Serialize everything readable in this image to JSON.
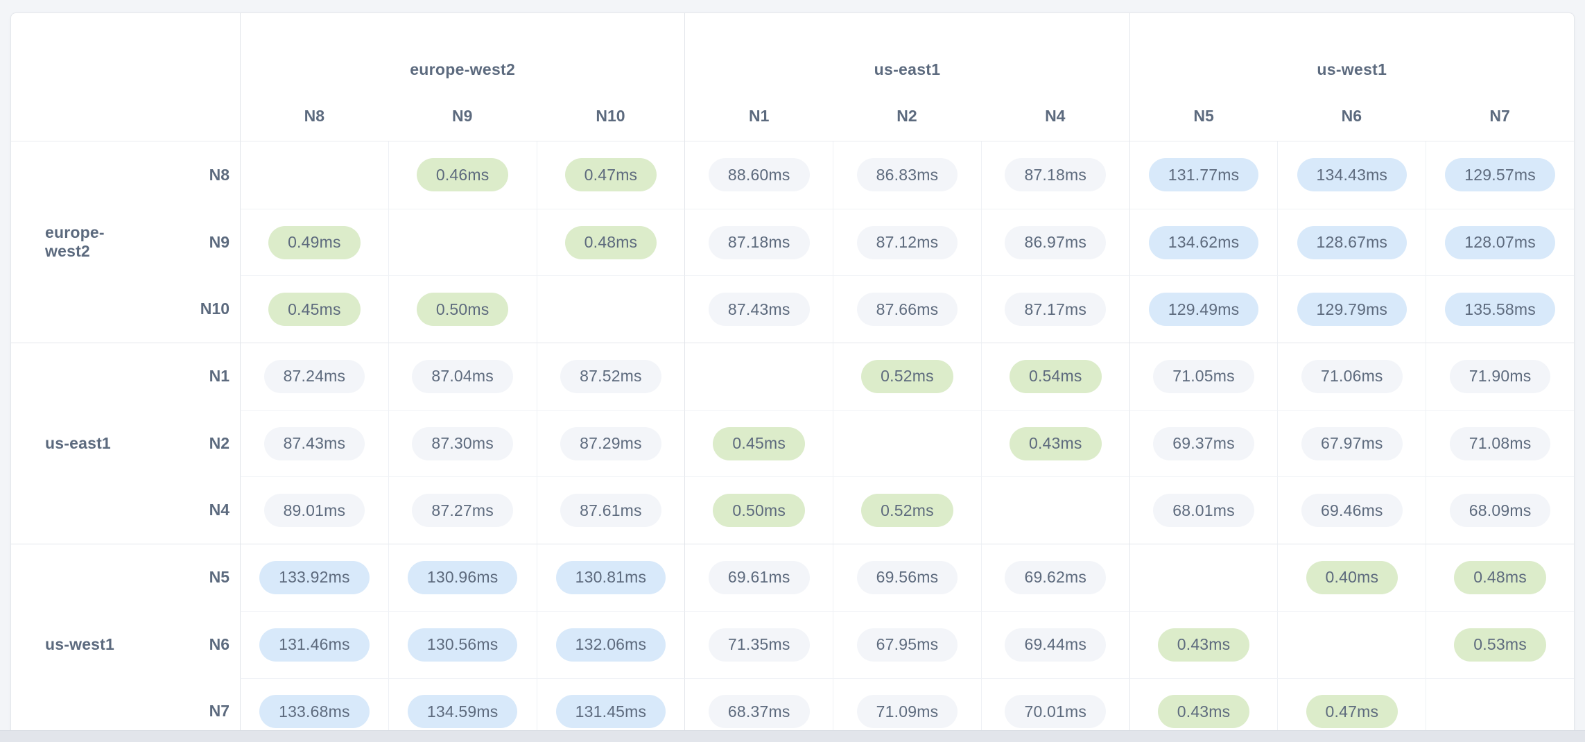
{
  "page": {
    "background": "#f3f5f8"
  },
  "chart_data": {
    "type": "heatmap",
    "unit": "ms",
    "legend": "none",
    "groups": [
      {
        "name": "europe-west2",
        "nodes": [
          "N8",
          "N9",
          "N10"
        ]
      },
      {
        "name": "us-east1",
        "nodes": [
          "N1",
          "N2",
          "N4"
        ]
      },
      {
        "name": "us-west1",
        "nodes": [
          "N5",
          "N6",
          "N7"
        ]
      }
    ],
    "columns": [
      "N8",
      "N9",
      "N10",
      "N1",
      "N2",
      "N4",
      "N5",
      "N6",
      "N7"
    ],
    "rows": [
      {
        "region": "europe-west2",
        "node": "N8",
        "values": [
          null,
          "0.46ms",
          "0.47ms",
          "88.60ms",
          "86.83ms",
          "87.18ms",
          "131.77ms",
          "134.43ms",
          "129.57ms"
        ]
      },
      {
        "region": "europe-west2",
        "node": "N9",
        "values": [
          "0.49ms",
          null,
          "0.48ms",
          "87.18ms",
          "87.12ms",
          "86.97ms",
          "134.62ms",
          "128.67ms",
          "128.07ms"
        ]
      },
      {
        "region": "europe-west2",
        "node": "N10",
        "values": [
          "0.45ms",
          "0.50ms",
          null,
          "87.43ms",
          "87.66ms",
          "87.17ms",
          "129.49ms",
          "129.79ms",
          "135.58ms"
        ]
      },
      {
        "region": "us-east1",
        "node": "N1",
        "values": [
          "87.24ms",
          "87.04ms",
          "87.52ms",
          null,
          "0.52ms",
          "0.54ms",
          "71.05ms",
          "71.06ms",
          "71.90ms"
        ]
      },
      {
        "region": "us-east1",
        "node": "N2",
        "values": [
          "87.43ms",
          "87.30ms",
          "87.29ms",
          "0.45ms",
          null,
          "0.43ms",
          "69.37ms",
          "67.97ms",
          "71.08ms"
        ]
      },
      {
        "region": "us-east1",
        "node": "N4",
        "values": [
          "89.01ms",
          "87.27ms",
          "87.61ms",
          "0.50ms",
          "0.52ms",
          null,
          "68.01ms",
          "69.46ms",
          "68.09ms"
        ]
      },
      {
        "region": "us-west1",
        "node": "N5",
        "values": [
          "133.92ms",
          "130.96ms",
          "130.81ms",
          "69.61ms",
          "69.56ms",
          "69.62ms",
          null,
          "0.40ms",
          "0.48ms"
        ]
      },
      {
        "region": "us-west1",
        "node": "N6",
        "values": [
          "131.46ms",
          "130.56ms",
          "132.06ms",
          "71.35ms",
          "67.95ms",
          "69.44ms",
          "0.43ms",
          null,
          "0.53ms"
        ]
      },
      {
        "region": "us-west1",
        "node": "N7",
        "values": [
          "133.68ms",
          "134.59ms",
          "131.45ms",
          "68.37ms",
          "71.09ms",
          "70.01ms",
          "0.43ms",
          "0.47ms",
          null
        ]
      }
    ],
    "colors": {
      "low_latency_pill": "#dcecca",
      "mid_latency_pill": "#f3f5f9",
      "high_latency_pill": "#d8e9fa",
      "text": "#5c6a7e"
    },
    "thresholds": {
      "low_below_ms": 1,
      "high_above_ms": 100
    }
  }
}
